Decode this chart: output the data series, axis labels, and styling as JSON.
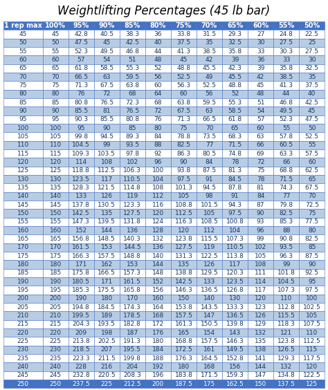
{
  "title": "Weightlifting Percentages (45 lb bar)",
  "columns": [
    "1 rep max",
    "100%",
    "95%",
    "90%",
    "85%",
    "80%",
    "75%",
    "70%",
    "65%",
    "60%",
    "55%",
    "50%"
  ],
  "rows": [
    [
      45,
      45,
      42.8,
      40.5,
      38.3,
      36.0,
      33.8,
      31.5,
      29.3,
      27.0,
      24.8,
      22.5
    ],
    [
      50,
      50,
      47.5,
      45.0,
      42.5,
      40.0,
      37.5,
      35.0,
      32.5,
      30.0,
      27.5,
      25.0
    ],
    [
      55,
      55,
      52.3,
      49.5,
      46.8,
      44.0,
      41.3,
      38.5,
      35.8,
      33.0,
      30.3,
      27.5
    ],
    [
      60,
      60,
      57.0,
      54.0,
      51.0,
      48.0,
      45.0,
      42.0,
      39.0,
      36.0,
      33.0,
      30.0
    ],
    [
      65,
      65,
      61.8,
      58.5,
      55.3,
      52.0,
      48.8,
      45.5,
      42.3,
      39.0,
      35.8,
      32.5
    ],
    [
      70,
      70,
      66.5,
      63.0,
      59.5,
      56.0,
      52.5,
      49.0,
      45.5,
      42.0,
      38.5,
      35.0
    ],
    [
      75,
      75,
      71.3,
      67.5,
      63.8,
      60.0,
      56.3,
      52.5,
      48.8,
      45.0,
      41.3,
      37.5
    ],
    [
      80,
      80,
      76.0,
      72.0,
      68.0,
      64.0,
      60.0,
      56.0,
      52.0,
      48.0,
      44.0,
      40.0
    ],
    [
      85,
      85,
      80.8,
      76.5,
      72.3,
      68.0,
      63.8,
      59.5,
      55.3,
      51.0,
      46.8,
      42.5
    ],
    [
      90,
      90,
      85.5,
      81.0,
      76.5,
      72.0,
      67.5,
      63.0,
      58.5,
      54.0,
      49.5,
      45.0
    ],
    [
      95,
      95,
      90.3,
      85.5,
      80.8,
      76.0,
      71.3,
      66.5,
      61.8,
      57.0,
      52.3,
      47.5
    ],
    [
      100,
      100,
      95.0,
      90.0,
      85.0,
      80.0,
      75.0,
      70.0,
      65.0,
      60.0,
      55.0,
      50.0
    ],
    [
      105,
      105,
      99.8,
      94.5,
      89.3,
      84.0,
      78.8,
      73.5,
      68.3,
      63.0,
      57.8,
      52.5
    ],
    [
      110,
      110,
      104.5,
      99.0,
      93.5,
      88.0,
      82.5,
      77.0,
      71.5,
      66.0,
      60.5,
      55.0
    ],
    [
      115,
      115,
      109.3,
      103.5,
      97.8,
      92.0,
      86.3,
      80.5,
      74.8,
      69.0,
      63.3,
      57.5
    ],
    [
      120,
      120,
      114.0,
      108.0,
      102.0,
      96.0,
      90.0,
      84.0,
      78.0,
      72.0,
      66.0,
      60.0
    ],
    [
      125,
      125,
      118.8,
      112.5,
      106.3,
      100.0,
      93.8,
      87.5,
      81.3,
      75.0,
      68.8,
      62.5
    ],
    [
      130,
      130,
      123.5,
      117.0,
      110.5,
      104.0,
      97.5,
      91.0,
      84.5,
      78.0,
      71.5,
      65.0
    ],
    [
      135,
      135,
      128.3,
      121.5,
      114.8,
      108.0,
      101.3,
      94.5,
      87.8,
      81.0,
      74.3,
      67.5
    ],
    [
      140,
      140,
      133.0,
      126.0,
      119.0,
      112.0,
      105.0,
      98.0,
      91.0,
      84.0,
      77.0,
      70.0
    ],
    [
      145,
      145,
      137.8,
      130.5,
      123.3,
      116.0,
      108.8,
      101.5,
      94.3,
      87.0,
      79.8,
      72.5
    ],
    [
      150,
      150,
      142.5,
      135.0,
      127.5,
      120.0,
      112.5,
      105.0,
      97.5,
      90.0,
      82.5,
      75.0
    ],
    [
      155,
      155,
      147.3,
      139.5,
      131.8,
      124.0,
      116.3,
      108.5,
      100.8,
      93.0,
      85.3,
      77.5
    ],
    [
      160,
      160,
      152.0,
      144.0,
      136.0,
      128.0,
      120.0,
      112.0,
      104.0,
      96.0,
      88.0,
      80.0
    ],
    [
      165,
      165,
      156.8,
      148.5,
      140.3,
      132.0,
      123.8,
      115.5,
      107.3,
      99.0,
      90.8,
      82.5
    ],
    [
      170,
      170,
      161.5,
      153.0,
      144.5,
      136.0,
      127.5,
      119.0,
      110.5,
      102.0,
      93.5,
      85.0
    ],
    [
      175,
      175,
      166.3,
      157.5,
      148.8,
      140.0,
      131.3,
      122.5,
      113.8,
      105.0,
      96.3,
      87.5
    ],
    [
      180,
      180,
      171.0,
      162.0,
      153.0,
      144.0,
      135.0,
      126.0,
      117.0,
      108.0,
      99.0,
      90.0
    ],
    [
      185,
      185,
      175.8,
      166.5,
      157.3,
      148.0,
      138.8,
      129.5,
      120.3,
      111.0,
      101.8,
      92.5
    ],
    [
      190,
      190,
      180.5,
      171.0,
      161.5,
      152.0,
      142.5,
      133.0,
      123.5,
      114.0,
      104.5,
      95.0
    ],
    [
      195,
      195,
      185.3,
      175.5,
      165.8,
      156.0,
      146.3,
      136.5,
      126.8,
      117.0,
      107.3,
      97.5
    ],
    [
      200,
      200,
      190.0,
      180.0,
      170.0,
      160.0,
      150.0,
      140.0,
      130.0,
      120.0,
      110.0,
      100.0
    ],
    [
      205,
      205,
      194.8,
      184.5,
      174.3,
      164.0,
      153.8,
      143.5,
      133.3,
      123.0,
      112.8,
      102.5
    ],
    [
      210,
      210,
      199.5,
      189.0,
      178.5,
      168.0,
      157.5,
      147.0,
      136.5,
      126.0,
      115.5,
      105.0
    ],
    [
      215,
      215,
      204.3,
      193.5,
      182.8,
      172.0,
      161.3,
      150.5,
      139.8,
      129.0,
      118.3,
      107.5
    ],
    [
      220,
      220,
      209.0,
      198.0,
      187.0,
      176.0,
      165.0,
      154.0,
      143.0,
      132.0,
      121.0,
      110.0
    ],
    [
      225,
      225,
      213.8,
      202.5,
      191.3,
      180.0,
      168.8,
      157.5,
      146.3,
      135.0,
      123.8,
      112.5
    ],
    [
      230,
      230,
      218.5,
      207.0,
      195.5,
      184.0,
      172.5,
      161.0,
      149.5,
      138.0,
      126.5,
      115.0
    ],
    [
      235,
      235,
      223.3,
      211.5,
      199.8,
      188.0,
      176.3,
      164.5,
      152.8,
      141.0,
      129.3,
      117.5
    ],
    [
      240,
      240,
      228.0,
      216.0,
      204.0,
      192.0,
      180.0,
      168.0,
      156.0,
      144.0,
      132.0,
      120.0
    ],
    [
      245,
      245,
      232.8,
      220.5,
      208.3,
      196.0,
      183.8,
      171.5,
      159.3,
      147.0,
      134.8,
      122.5
    ],
    [
      250,
      250,
      237.5,
      225.0,
      212.5,
      200.0,
      187.5,
      175.0,
      162.5,
      150.0,
      137.5,
      125.0
    ]
  ],
  "header_bg": "#4472c4",
  "header_text": "#ffffff",
  "row_bg_blue": "#b8cce4",
  "row_bg_white": "#ffffff",
  "last_row_bg": "#4472c4",
  "last_row_text": "#ffffff",
  "border_color": "#4472c4",
  "title_color": "#000000",
  "cell_text_color": "#17375e",
  "title_fontsize": 12,
  "header_fontsize": 7,
  "cell_fontsize": 6.5
}
